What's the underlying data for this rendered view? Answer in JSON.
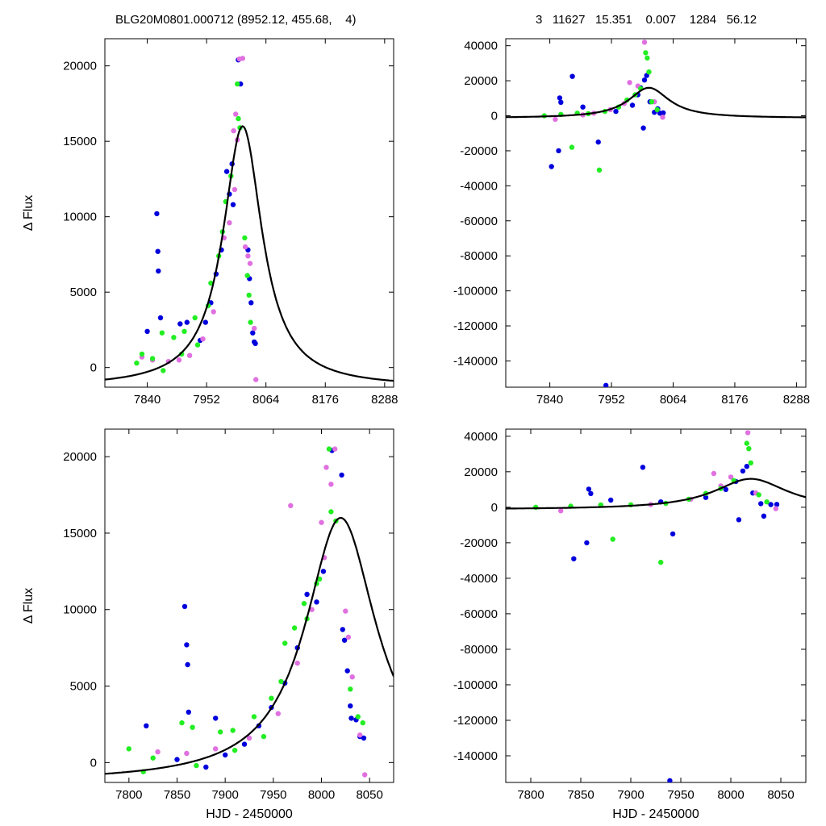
{
  "header": {
    "left": "BLG20M0801.000712 (8952.12, 455.68,    4)",
    "right": "3   11627   15.351    0.007    1284   56.12"
  },
  "colors": {
    "blue": "#0000dd",
    "magenta": "#e070e0",
    "green": "#22ee22",
    "model": "#000000"
  },
  "fit_params": {
    "t0": 8020,
    "tE": 45,
    "amp": 16000,
    "base": -1300
  },
  "chart_data": [
    {
      "type": "scatter",
      "panel": "top-left",
      "title": "",
      "xlabel": "",
      "ylabel": "Δ Flux",
      "xlim": [
        7760,
        8305
      ],
      "ylim": [
        -1300,
        21800
      ],
      "xticks": [
        7840,
        7952,
        8064,
        8176,
        8288
      ],
      "yticks": [
        0,
        5000,
        10000,
        15000,
        20000
      ],
      "grid": false,
      "series": [
        {
          "color": "blue",
          "points": [
            [
              7858,
              10200
            ],
            [
              7860,
              7700
            ],
            [
              7861,
              6400
            ],
            [
              7865,
              3300
            ],
            [
              7840,
              2400
            ],
            [
              7902,
              2900
            ],
            [
              7915,
              3000
            ],
            [
              8012,
              20400
            ],
            [
              8016,
              18800
            ],
            [
              8030,
              7800
            ],
            [
              8033,
              5900
            ],
            [
              8036,
              4300
            ],
            [
              8039,
              2300
            ],
            [
              8042,
              1700
            ],
            [
              8044,
              1600
            ],
            [
              7990,
              13000
            ],
            [
              7995,
              11500
            ],
            [
              8000,
              13500
            ],
            [
              8002,
              10800
            ],
            [
              7980,
              7800
            ],
            [
              7970,
              6200
            ],
            [
              7960,
              4300
            ],
            [
              7950,
              3000
            ],
            [
              7940,
              1800
            ]
          ]
        },
        {
          "color": "magenta",
          "points": [
            [
              8014,
              20450
            ],
            [
              8020,
              20500
            ],
            [
              8007,
              16800
            ],
            [
              8003,
              15700
            ],
            [
              8010,
              15100
            ],
            [
              8025,
              8000
            ],
            [
              8030,
              7400
            ],
            [
              8034,
              6900
            ],
            [
              8042,
              2600
            ],
            [
              8045,
              -800
            ],
            [
              7830,
              700
            ],
            [
              7850,
              500
            ],
            [
              7880,
              400
            ],
            [
              7900,
              500
            ],
            [
              7920,
              800
            ],
            [
              7945,
              1900
            ],
            [
              7965,
              3700
            ],
            [
              7985,
              8600
            ],
            [
              7995,
              9600
            ],
            [
              8005,
              11800
            ]
          ]
        },
        {
          "color": "green",
          "points": [
            [
              8010,
              18800
            ],
            [
              8012,
              16500
            ],
            [
              8015,
              15900
            ],
            [
              8024,
              8600
            ],
            [
              8029,
              6100
            ],
            [
              8032,
              4800
            ],
            [
              8035,
              3000
            ],
            [
              7830,
              900
            ],
            [
              7850,
              600
            ],
            [
              7868,
              2300
            ],
            [
              7890,
              2000
            ],
            [
              7910,
              2400
            ],
            [
              7930,
              3300
            ],
            [
              7955,
              4100
            ],
            [
              7975,
              7400
            ],
            [
              7988,
              11000
            ],
            [
              7998,
              12700
            ],
            [
              7820,
              300
            ],
            [
              7870,
              -200
            ],
            [
              7905,
              900
            ],
            [
              7935,
              1500
            ],
            [
              7960,
              5600
            ],
            [
              7982,
              9000
            ]
          ]
        }
      ]
    },
    {
      "type": "scatter",
      "panel": "top-right",
      "title": "",
      "xlabel": "",
      "ylabel": "",
      "xlim": [
        7760,
        8305
      ],
      "ylim": [
        -155000,
        44000
      ],
      "xticks": [
        7840,
        7952,
        8064,
        8176,
        8288
      ],
      "yticks": [
        40000,
        20000,
        0,
        -20000,
        -40000,
        -60000,
        -80000,
        -100000,
        -120000,
        -140000
      ],
      "grid": false,
      "series": [
        {
          "color": "blue",
          "points": [
            [
              7843,
              -29000
            ],
            [
              7856,
              -20000
            ],
            [
              7858,
              10200
            ],
            [
              7860,
              7700
            ],
            [
              7881,
              22500
            ],
            [
              7928,
              -15000
            ],
            [
              7942,
              -154000
            ],
            [
              8010,
              -7000
            ],
            [
              8016,
              23000
            ],
            [
              8012,
              20400
            ],
            [
              8030,
              2000
            ],
            [
              8040,
              1500
            ],
            [
              8046,
              1600
            ],
            [
              7900,
              5000
            ],
            [
              7960,
              2500
            ],
            [
              7990,
              6000
            ],
            [
              8000,
              12000
            ],
            [
              8005,
              16000
            ],
            [
              8022,
              8000
            ],
            [
              8036,
              4000
            ]
          ]
        },
        {
          "color": "magenta",
          "points": [
            [
              8012,
              42000
            ],
            [
              7985,
              19000
            ],
            [
              8000,
              17000
            ],
            [
              8030,
              8000
            ],
            [
              8045,
              -800
            ],
            [
              7850,
              -2000
            ],
            [
              7900,
              500
            ],
            [
              7950,
              3500
            ],
            [
              7975,
              7000
            ],
            [
              7920,
              1500
            ]
          ]
        },
        {
          "color": "green",
          "points": [
            [
              7880,
              -18000
            ],
            [
              7930,
              -31000
            ],
            [
              8014,
              36000
            ],
            [
              8017,
              33000
            ],
            [
              8020,
              25000
            ],
            [
              7830,
              0
            ],
            [
              7860,
              800
            ],
            [
              7890,
              1500
            ],
            [
              7910,
              1200
            ],
            [
              7940,
              2500
            ],
            [
              7965,
              5000
            ],
            [
              7980,
              9000
            ],
            [
              7995,
              12000
            ],
            [
              8005,
              15500
            ],
            [
              8025,
              8000
            ],
            [
              8035,
              3500
            ]
          ]
        }
      ]
    },
    {
      "type": "scatter",
      "panel": "bottom-left",
      "title": "",
      "xlabel": "HJD - 2450000",
      "ylabel": "Δ Flux",
      "xlim": [
        7775,
        8075
      ],
      "ylim": [
        -1300,
        21800
      ],
      "xticks": [
        7800,
        7850,
        7900,
        7950,
        8000,
        8050
      ],
      "yticks": [
        0,
        5000,
        10000,
        15000,
        20000
      ],
      "grid": false,
      "series": [
        {
          "color": "blue",
          "points": [
            [
              7858,
              10200
            ],
            [
              7860,
              7700
            ],
            [
              7861,
              6400
            ],
            [
              7862,
              3300
            ],
            [
              7818,
              2400
            ],
            [
              7890,
              2900
            ],
            [
              8011,
              20400
            ],
            [
              8021,
              18800
            ],
            [
              8022,
              8700
            ],
            [
              8024,
              8000
            ],
            [
              8027,
              6000
            ],
            [
              8030,
              3700
            ],
            [
              8031,
              2900
            ],
            [
              8036,
              2800
            ],
            [
              8040,
              1700
            ],
            [
              8044,
              1600
            ],
            [
              7985,
              11000
            ],
            [
              7995,
              10500
            ],
            [
              8002,
              12500
            ],
            [
              7975,
              7500
            ],
            [
              7962,
              5200
            ],
            [
              7948,
              3600
            ],
            [
              7935,
              2400
            ],
            [
              7920,
              1200
            ],
            [
              7900,
              500
            ],
            [
              7880,
              -300
            ],
            [
              7850,
              200
            ]
          ]
        },
        {
          "color": "magenta",
          "points": [
            [
              8014,
              20500
            ],
            [
              7968,
              16800
            ],
            [
              8000,
              15700
            ],
            [
              8005,
              19300
            ],
            [
              8010,
              18200
            ],
            [
              8025,
              9900
            ],
            [
              8028,
              8200
            ],
            [
              8032,
              5600
            ],
            [
              8040,
              1800
            ],
            [
              8045,
              -800
            ],
            [
              7830,
              700
            ],
            [
              7860,
              600
            ],
            [
              7890,
              900
            ],
            [
              7925,
              1600
            ],
            [
              7955,
              3200
            ],
            [
              7975,
              6500
            ],
            [
              7990,
              10000
            ],
            [
              8003,
              13400
            ]
          ]
        },
        {
          "color": "green",
          "points": [
            [
              8008,
              20500
            ],
            [
              8010,
              16400
            ],
            [
              8015,
              15800
            ],
            [
              8030,
              4800
            ],
            [
              8038,
              3000
            ],
            [
              8043,
              2600
            ],
            [
              7800,
              900
            ],
            [
              7825,
              300
            ],
            [
              7855,
              2600
            ],
            [
              7866,
              2300
            ],
            [
              7895,
              2000
            ],
            [
              7908,
              2100
            ],
            [
              7930,
              3000
            ],
            [
              7948,
              4200
            ],
            [
              7962,
              7800
            ],
            [
              7972,
              8800
            ],
            [
              7982,
              10400
            ],
            [
              7998,
              12000
            ],
            [
              7815,
              -600
            ],
            [
              7870,
              -200
            ],
            [
              7910,
              800
            ],
            [
              7940,
              1700
            ],
            [
              7958,
              5300
            ],
            [
              7985,
              9400
            ],
            [
              7995,
              11700
            ]
          ]
        }
      ]
    },
    {
      "type": "scatter",
      "panel": "bottom-right",
      "title": "",
      "xlabel": "HJD - 2450000",
      "ylabel": "",
      "xlim": [
        7775,
        8075
      ],
      "ylim": [
        -155000,
        44000
      ],
      "xticks": [
        7800,
        7850,
        7900,
        7950,
        8000,
        8050
      ],
      "yticks": [
        40000,
        20000,
        0,
        -20000,
        -40000,
        -60000,
        -80000,
        -100000,
        -120000,
        -140000
      ],
      "grid": false,
      "series": [
        {
          "color": "blue",
          "points": [
            [
              7843,
              -29000
            ],
            [
              7856,
              -20000
            ],
            [
              7858,
              10200
            ],
            [
              7860,
              7700
            ],
            [
              7912,
              22500
            ],
            [
              7942,
              -15000
            ],
            [
              7939,
              -154000
            ],
            [
              8008,
              -7000
            ],
            [
              8016,
              23000
            ],
            [
              8012,
              20400
            ],
            [
              8030,
              2000
            ],
            [
              8040,
              1500
            ],
            [
              8046,
              1600
            ],
            [
              8033,
              -5000
            ],
            [
              7880,
              4000
            ],
            [
              7930,
              3000
            ],
            [
              7975,
              5500
            ],
            [
              7995,
              10000
            ],
            [
              8005,
              14500
            ],
            [
              8022,
              8000
            ]
          ]
        },
        {
          "color": "magenta",
          "points": [
            [
              8017,
              42000
            ],
            [
              7983,
              19000
            ],
            [
              8000,
              17000
            ],
            [
              8025,
              8000
            ],
            [
              8045,
              -800
            ],
            [
              7830,
              -2000
            ],
            [
              7870,
              1200
            ],
            [
              7920,
              1500
            ],
            [
              7960,
              4500
            ],
            [
              7990,
              12000
            ]
          ]
        },
        {
          "color": "green",
          "points": [
            [
              7882,
              -18000
            ],
            [
              7930,
              -31000
            ],
            [
              8016,
              36000
            ],
            [
              8018,
              33000
            ],
            [
              8020,
              25000
            ],
            [
              7805,
              0
            ],
            [
              7840,
              600
            ],
            [
              7870,
              1300
            ],
            [
              7900,
              1400
            ],
            [
              7935,
              2200
            ],
            [
              7958,
              4500
            ],
            [
              7975,
              7800
            ],
            [
              7990,
              10500
            ],
            [
              8003,
              15000
            ],
            [
              8028,
              7000
            ],
            [
              8036,
              3000
            ]
          ]
        }
      ]
    }
  ]
}
